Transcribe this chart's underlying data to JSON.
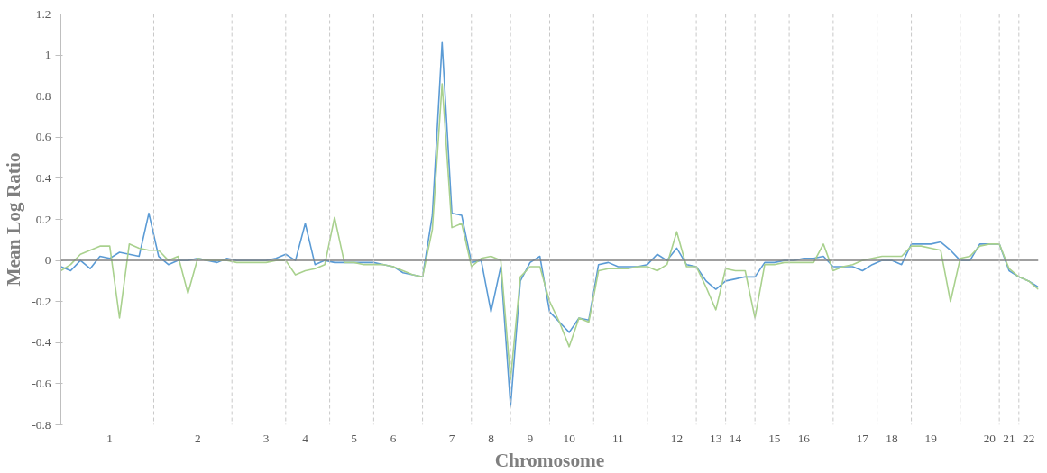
{
  "chart_data": {
    "type": "line",
    "xlabel": "Chromosome",
    "ylabel": "Mean Log Ratio",
    "ylim": [
      -0.8,
      1.2
    ],
    "yticks": [
      -0.8,
      -0.6,
      -0.4,
      -0.2,
      0,
      0.2,
      0.4,
      0.6,
      0.8,
      1,
      1.2
    ],
    "categories": [
      null,
      null,
      null,
      null,
      null,
      "1",
      null,
      null,
      null,
      null,
      null,
      null,
      null,
      null,
      "2",
      null,
      null,
      null,
      null,
      null,
      null,
      "3",
      null,
      null,
      null,
      "4",
      null,
      null,
      null,
      null,
      "5",
      null,
      null,
      null,
      "6",
      null,
      null,
      null,
      null,
      null,
      "7",
      null,
      null,
      null,
      "8",
      null,
      null,
      null,
      "9",
      null,
      null,
      null,
      "10",
      null,
      null,
      null,
      null,
      "11",
      null,
      null,
      null,
      null,
      null,
      "12",
      null,
      null,
      null,
      "13",
      null,
      "14",
      null,
      null,
      null,
      "15",
      null,
      null,
      "16",
      null,
      null,
      null,
      null,
      null,
      "17",
      null,
      null,
      "18",
      null,
      null,
      null,
      "19",
      null,
      null,
      null,
      null,
      null,
      "20",
      null,
      "21",
      null,
      "22",
      null
    ],
    "grid": false,
    "line_style": "solid",
    "ref_lines": [
      {
        "axis": "y",
        "value": 0,
        "label": null,
        "color": "#808080",
        "line_style": "solid"
      }
    ],
    "series": [
      {
        "color": "#5b9bd5",
        "values": [
          -0.03,
          -0.05,
          0.0,
          -0.04,
          0.02,
          0.01,
          0.04,
          0.03,
          0.02,
          0.23,
          0.02,
          -0.02,
          0.0,
          0.0,
          0.01,
          0.0,
          -0.01,
          0.01,
          0.0,
          0.0,
          0.0,
          0.0,
          0.01,
          0.03,
          0.0,
          0.18,
          -0.02,
          0.0,
          -0.01,
          -0.01,
          -0.01,
          -0.01,
          -0.01,
          -0.02,
          -0.03,
          -0.06,
          -0.07,
          -0.08,
          0.22,
          1.06,
          0.23,
          0.22,
          -0.01,
          0.0,
          -0.25,
          -0.03,
          -0.71,
          -0.1,
          -0.01,
          0.02,
          -0.25,
          -0.3,
          -0.35,
          -0.28,
          -0.29,
          -0.02,
          -0.01,
          -0.03,
          -0.03,
          -0.03,
          -0.02,
          0.03,
          0.0,
          0.06,
          -0.02,
          -0.03,
          -0.1,
          -0.14,
          -0.1,
          -0.09,
          -0.08,
          -0.08,
          -0.01,
          -0.01,
          0.0,
          0.0,
          0.01,
          0.01,
          0.02,
          -0.03,
          -0.03,
          -0.03,
          -0.05,
          -0.02,
          0.0,
          0.0,
          -0.02,
          0.08,
          0.08,
          0.08,
          0.09,
          0.05,
          0.0,
          0.0,
          0.08,
          0.08,
          0.08,
          -0.05,
          -0.08,
          -0.1,
          -0.13
        ]
      },
      {
        "color": "#a9d18e",
        "values": [
          -0.05,
          -0.02,
          0.03,
          0.05,
          0.07,
          0.07,
          -0.28,
          0.08,
          0.06,
          0.05,
          0.05,
          0.0,
          0.02,
          -0.16,
          0.01,
          0.0,
          0.0,
          0.0,
          -0.01,
          -0.01,
          -0.01,
          -0.01,
          0.0,
          0.0,
          -0.07,
          -0.05,
          -0.04,
          -0.02,
          0.21,
          -0.01,
          -0.01,
          -0.02,
          -0.02,
          -0.02,
          -0.03,
          -0.05,
          -0.07,
          -0.08,
          0.15,
          0.86,
          0.16,
          0.18,
          -0.03,
          0.01,
          0.02,
          0.0,
          -0.58,
          -0.08,
          -0.03,
          -0.03,
          -0.2,
          -0.3,
          -0.42,
          -0.28,
          -0.3,
          -0.05,
          -0.04,
          -0.04,
          -0.04,
          -0.03,
          -0.03,
          -0.05,
          -0.02,
          0.14,
          -0.03,
          -0.03,
          -0.13,
          -0.24,
          -0.04,
          -0.05,
          -0.05,
          -0.28,
          -0.02,
          -0.02,
          -0.01,
          -0.01,
          -0.01,
          -0.01,
          0.08,
          -0.05,
          -0.03,
          -0.02,
          0.0,
          0.01,
          0.02,
          0.02,
          0.02,
          0.07,
          0.07,
          0.06,
          0.05,
          -0.2,
          0.01,
          0.02,
          0.07,
          0.08,
          0.08,
          -0.04,
          -0.08,
          -0.1,
          -0.14
        ]
      }
    ]
  }
}
